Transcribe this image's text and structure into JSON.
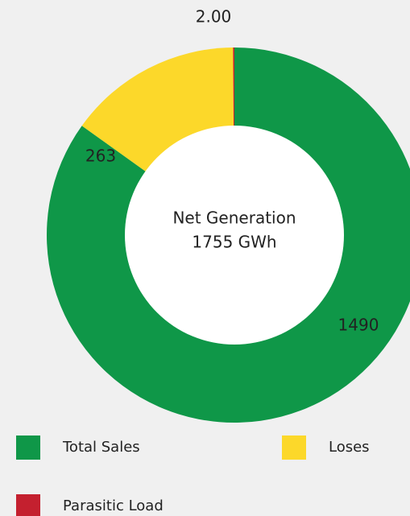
{
  "chart_data": {
    "type": "donut",
    "center_text": [
      "Net Generation",
      "1755 GWh"
    ],
    "categories": [
      "Total Sales",
      "Loses",
      "Parasitic Load"
    ],
    "values": [
      1490,
      263,
      2
    ],
    "value_labels": [
      "1490",
      "263",
      "2.00"
    ],
    "colors": [
      "#0f9748",
      "#fcd82a",
      "#c4202f"
    ]
  }
}
